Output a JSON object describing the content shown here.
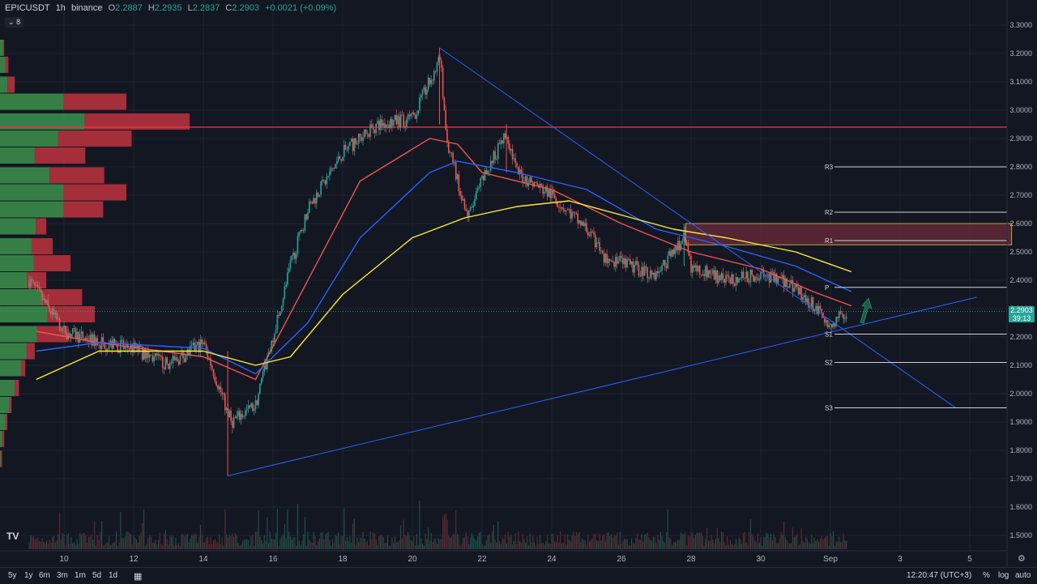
{
  "header": {
    "symbol": "EPICUSDT",
    "interval": "1h",
    "exchange": "binance",
    "open_label": "O",
    "open_value": "2.2887",
    "high_label": "H",
    "high_value": "2.2935",
    "low_label": "L",
    "low_value": "2.2837",
    "close_label": "C",
    "close_value": "2.2903",
    "change": "+0.0021 (+0.09%)",
    "indicator_count": "8"
  },
  "price_axis": {
    "labels": [
      "3.3000",
      "3.2000",
      "3.1000",
      "3.0000",
      "2.9000",
      "2.8000",
      "2.7000",
      "2.6000",
      "2.5000",
      "2.4000",
      "2.3000",
      "2.2000",
      "2.1000",
      "2.0000",
      "1.9000",
      "1.8000",
      "1.7000",
      "1.6000",
      "1.5000"
    ],
    "last_price": "2.2903",
    "countdown": "39:13"
  },
  "time_axis": {
    "labels": [
      "10",
      "12",
      "14",
      "16",
      "18",
      "20",
      "22",
      "24",
      "26",
      "28",
      "30",
      "Sep",
      "3",
      "5"
    ]
  },
  "bottom_bar": {
    "timeframes": [
      "5y",
      "1y",
      "6m",
      "3m",
      "1m",
      "5d",
      "1d"
    ],
    "range_icon": "calendar-range-icon",
    "clock": "12:20:47 (UTC+3)",
    "percent": "%",
    "log": "log",
    "auto": "auto"
  },
  "chart_data": {
    "type": "candlestick",
    "symbol": "EPICUSDT",
    "timeframe": "1h",
    "x_range": [
      "Aug 9",
      "Sep 6"
    ],
    "ylim": [
      1.45,
      3.32
    ],
    "grid": true,
    "price_path": [
      {
        "date": "Aug 9",
        "price": 2.4
      },
      {
        "date": "Aug 10",
        "price": 2.22
      },
      {
        "date": "Aug 11",
        "price": 2.18
      },
      {
        "date": "Aug 12",
        "price": 2.16
      },
      {
        "date": "Aug 13",
        "price": 2.1
      },
      {
        "date": "Aug 14",
        "price": 2.18
      },
      {
        "date": "Aug 14.8",
        "price": 1.9
      },
      {
        "date": "Aug 15.5",
        "price": 1.96
      },
      {
        "date": "Aug 16.5",
        "price": 2.45
      },
      {
        "date": "Aug 17",
        "price": 2.65
      },
      {
        "date": "Aug 18",
        "price": 2.85
      },
      {
        "date": "Aug 19",
        "price": 2.95
      },
      {
        "date": "Aug 20",
        "price": 2.97
      },
      {
        "date": "Aug 20.8",
        "price": 3.18
      },
      {
        "date": "Aug 21",
        "price": 2.88
      },
      {
        "date": "Aug 21.6",
        "price": 2.62
      },
      {
        "date": "Aug 22",
        "price": 2.75
      },
      {
        "date": "Aug 22.7",
        "price": 2.92
      },
      {
        "date": "Aug 23",
        "price": 2.78
      },
      {
        "date": "Aug 24",
        "price": 2.7
      },
      {
        "date": "Aug 25",
        "price": 2.58
      },
      {
        "date": "Aug 25.5",
        "price": 2.48
      },
      {
        "date": "Aug 26",
        "price": 2.46
      },
      {
        "date": "Aug 27",
        "price": 2.42
      },
      {
        "date": "Aug 27.8",
        "price": 2.55
      },
      {
        "date": "Aug 28",
        "price": 2.45
      },
      {
        "date": "Aug 29",
        "price": 2.4
      },
      {
        "date": "Aug 30",
        "price": 2.42
      },
      {
        "date": "Aug 31",
        "price": 2.38
      },
      {
        "date": "Sep 1",
        "price": 2.24
      },
      {
        "date": "Sep 1.5",
        "price": 2.29
      }
    ],
    "moving_averages": [
      {
        "color": "#ef5350",
        "points": [
          [
            9.2,
            2.22
          ],
          [
            11,
            2.18
          ],
          [
            14,
            2.13
          ],
          [
            15.5,
            2.05
          ],
          [
            17,
            2.4
          ],
          [
            18.5,
            2.75
          ],
          [
            20.5,
            2.9
          ],
          [
            21.3,
            2.88
          ],
          [
            22,
            2.78
          ],
          [
            24,
            2.72
          ],
          [
            26,
            2.6
          ],
          [
            28,
            2.5
          ],
          [
            30,
            2.44
          ],
          [
            31.5,
            2.36
          ],
          [
            32.6,
            2.31
          ]
        ]
      },
      {
        "color": "#2962ff",
        "points": [
          [
            9.2,
            2.15
          ],
          [
            11,
            2.18
          ],
          [
            14,
            2.16
          ],
          [
            15.5,
            2.07
          ],
          [
            17,
            2.25
          ],
          [
            18.5,
            2.55
          ],
          [
            20.5,
            2.78
          ],
          [
            21.3,
            2.82
          ],
          [
            23,
            2.78
          ],
          [
            25,
            2.72
          ],
          [
            27,
            2.58
          ],
          [
            29,
            2.52
          ],
          [
            31,
            2.45
          ],
          [
            32.6,
            2.36
          ]
        ]
      },
      {
        "color": "#ffeb3b",
        "points": [
          [
            9.2,
            2.05
          ],
          [
            11,
            2.15
          ],
          [
            14,
            2.15
          ],
          [
            15.5,
            2.1
          ],
          [
            16.5,
            2.13
          ],
          [
            18,
            2.35
          ],
          [
            20,
            2.55
          ],
          [
            21.5,
            2.62
          ],
          [
            23,
            2.66
          ],
          [
            24.5,
            2.68
          ],
          [
            26,
            2.63
          ],
          [
            27.5,
            2.58
          ],
          [
            29,
            2.55
          ],
          [
            31,
            2.5
          ],
          [
            32.6,
            2.43
          ]
        ]
      }
    ],
    "horizontal_lines": [
      {
        "price": 2.94,
        "color": "#f23645"
      }
    ],
    "trend_lines": [
      {
        "from": [
          20.78,
          3.22
        ],
        "to": [
          35.6,
          1.95
        ],
        "color": "#2962ff"
      },
      {
        "from": [
          14.7,
          1.71
        ],
        "to": [
          36.2,
          2.34
        ],
        "color": "#2962ff"
      }
    ],
    "zone": {
      "x_from": 27.85,
      "x_to": 37.2,
      "price_top": 2.6,
      "price_bottom": 2.525
    },
    "pivots": [
      {
        "label": "R3",
        "price": 2.8
      },
      {
        "label": "R2",
        "price": 2.64
      },
      {
        "label": "R1",
        "price": 2.54
      },
      {
        "label": "P",
        "price": 2.375
      },
      {
        "label": "S1",
        "price": 2.21
      },
      {
        "label": "S2",
        "price": 2.11
      },
      {
        "label": "S3",
        "price": 1.95
      }
    ],
    "last_price": 2.2903,
    "volume_profile": {
      "rows": [
        {
          "price": 3.22,
          "buy": 3,
          "sell": 1
        },
        {
          "price": 3.16,
          "buy": 5,
          "sell": 3
        },
        {
          "price": 3.09,
          "buy": 7,
          "sell": 7
        },
        {
          "price": 3.03,
          "buy": 60,
          "sell": 60
        },
        {
          "price": 2.96,
          "buy": 80,
          "sell": 100
        },
        {
          "price": 2.9,
          "buy": 55,
          "sell": 70
        },
        {
          "price": 2.84,
          "buy": 33,
          "sell": 48
        },
        {
          "price": 2.77,
          "buy": 47,
          "sell": 52
        },
        {
          "price": 2.71,
          "buy": 60,
          "sell": 60
        },
        {
          "price": 2.65,
          "buy": 60,
          "sell": 38
        },
        {
          "price": 2.59,
          "buy": 34,
          "sell": 10
        },
        {
          "price": 2.52,
          "buy": 30,
          "sell": 20
        },
        {
          "price": 2.46,
          "buy": 32,
          "sell": 35
        },
        {
          "price": 2.4,
          "buy": 26,
          "sell": 18
        },
        {
          "price": 2.34,
          "buy": 40,
          "sell": 38
        },
        {
          "price": 2.28,
          "buy": 45,
          "sell": 45
        },
        {
          "price": 2.21,
          "buy": 35,
          "sell": 30
        },
        {
          "price": 2.15,
          "buy": 25,
          "sell": 8
        },
        {
          "price": 2.09,
          "buy": 20,
          "sell": 4
        },
        {
          "price": 2.02,
          "buy": 14,
          "sell": 4
        },
        {
          "price": 1.96,
          "buy": 9,
          "sell": 2
        },
        {
          "price": 1.9,
          "buy": 5,
          "sell": 2
        },
        {
          "price": 1.84,
          "buy": 2,
          "sell": 2
        },
        {
          "price": 1.77,
          "buy": 1,
          "sell": 1
        }
      ]
    }
  }
}
